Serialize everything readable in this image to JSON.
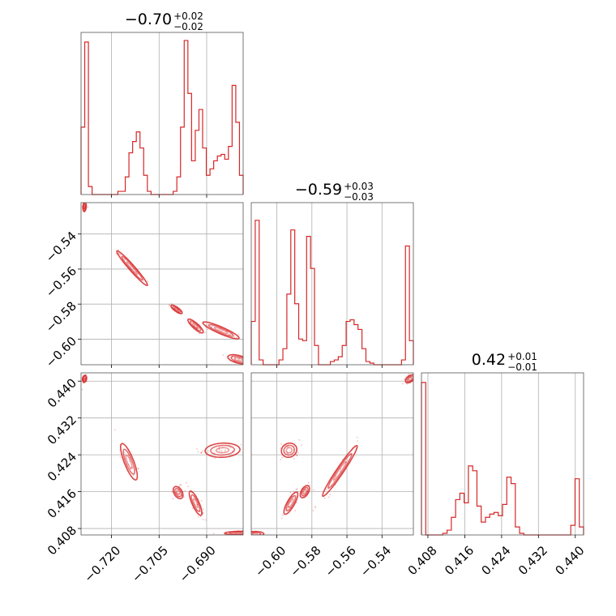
{
  "chart_data": {
    "type": "corner",
    "color": "#d62728",
    "grid": true,
    "parameters": [
      {
        "name": "p0",
        "title": {
          "median": "−0.70",
          "plus": "+0.02",
          "minus": "−0.02"
        },
        "range": [
          -0.7296,
          -0.6785
        ],
        "ticks": [
          -0.72,
          -0.705,
          -0.69
        ],
        "tick_labels": [
          "−0.720",
          "−0.705",
          "−0.690"
        ],
        "hist": [
          0.42,
          0.95,
          0.05,
          0,
          0,
          0,
          0,
          0,
          0,
          0,
          0.02,
          0.02,
          0.11,
          0.26,
          0.33,
          0.39,
          0.29,
          0.12,
          0.02,
          0,
          0,
          0,
          0,
          0,
          0,
          0.02,
          0.11,
          0.42,
          0.96,
          0.63,
          0.21,
          0.4,
          0.53,
          0.29,
          0.12,
          0.16,
          0.21,
          0.24,
          0.25,
          0.22,
          0.3,
          0.68,
          0.45,
          0.12
        ]
      },
      {
        "name": "p1",
        "title": {
          "median": "−0.59",
          "plus": "+0.03",
          "minus": "−0.03"
        },
        "range": [
          -0.6146,
          -0.5221
        ],
        "ticks": [
          -0.6,
          -0.58,
          -0.56,
          -0.54
        ],
        "tick_labels": [
          "−0.60",
          "−0.58",
          "−0.56",
          "−0.54"
        ],
        "hist": [
          0.27,
          0.9,
          0.03,
          0,
          0,
          0,
          0,
          0.03,
          0.1,
          0.44,
          0.84,
          0.38,
          0.16,
          0.15,
          0.8,
          0.6,
          0.12,
          0,
          0,
          0,
          0.02,
          0.03,
          0.05,
          0.12,
          0.27,
          0.28,
          0.25,
          0.22,
          0.1,
          0.02,
          0.01,
          0,
          0,
          0,
          0,
          0,
          0,
          0,
          0.03,
          0.74,
          0.15
        ]
      },
      {
        "name": "p2",
        "title": {
          "median": "0.42",
          "plus": "+0.01",
          "minus": "−0.01"
        },
        "range": [
          0.4066,
          0.4418
        ],
        "ticks": [
          0.408,
          0.416,
          0.424,
          0.432,
          0.44
        ],
        "tick_labels": [
          "0.408",
          "0.416",
          "0.424",
          "0.432",
          "0.440"
        ],
        "hist": [
          0.95,
          0,
          0,
          0,
          0,
          0.01,
          0.03,
          0.11,
          0.22,
          0.26,
          0.2,
          0.43,
          0.4,
          0.18,
          0.08,
          0.11,
          0.13,
          0.14,
          0.12,
          0.19,
          0.36,
          0.32,
          0.05,
          0.01,
          0,
          0,
          0,
          0,
          0,
          0,
          0,
          0,
          0,
          0,
          0,
          0.06,
          0.35,
          0.05
        ]
      }
    ],
    "pairs": [
      {
        "x": 0,
        "y": 1,
        "clusters": [
          {
            "cx": -0.7285,
            "cy": -0.5245,
            "sx": 0.00025,
            "sy": 0.0012,
            "rho": 0.2
          },
          {
            "cx": -0.7135,
            "cy": -0.5595,
            "sx": 0.0022,
            "sy": 0.0045,
            "rho": -0.97
          },
          {
            "cx": -0.6995,
            "cy": -0.583,
            "sx": 0.0008,
            "sy": 0.0011,
            "rho": -0.8
          },
          {
            "cx": -0.6935,
            "cy": -0.5925,
            "sx": 0.0011,
            "sy": 0.0018,
            "rho": -0.85
          },
          {
            "cx": -0.6855,
            "cy": -0.595,
            "sx": 0.0026,
            "sy": 0.0022,
            "rho": -0.9
          },
          {
            "cx": -0.68,
            "cy": -0.6115,
            "sx": 0.0015,
            "sy": 0.0012,
            "rho": -0.5
          }
        ]
      },
      {
        "x": 0,
        "y": 2,
        "clusters": [
          {
            "cx": -0.7285,
            "cy": 0.4405,
            "sx": 0.0003,
            "sy": 0.00035,
            "rho": 0.2
          },
          {
            "cx": -0.7145,
            "cy": 0.4225,
            "sx": 0.0012,
            "sy": 0.0018,
            "rho": -0.8
          },
          {
            "cx": -0.699,
            "cy": 0.4158,
            "sx": 0.0007,
            "sy": 0.0006,
            "rho": -0.4
          },
          {
            "cx": -0.6935,
            "cy": 0.4135,
            "sx": 0.0009,
            "sy": 0.0012,
            "rho": -0.8
          },
          {
            "cx": -0.685,
            "cy": 0.425,
            "sx": 0.0025,
            "sy": 0.0007,
            "rho": 0.1
          },
          {
            "cx": -0.6795,
            "cy": 0.407,
            "sx": 0.0022,
            "sy": 0.00018,
            "rho": 0.1
          }
        ]
      },
      {
        "x": 1,
        "y": 2,
        "clusters": [
          {
            "cx": -0.613,
            "cy": 0.4068,
            "sx": 0.0025,
            "sy": 0.00025,
            "rho": 0.1
          },
          {
            "cx": -0.593,
            "cy": 0.425,
            "sx": 0.002,
            "sy": 0.0007,
            "rho": 0.1
          },
          {
            "cx": -0.592,
            "cy": 0.4135,
            "sx": 0.0018,
            "sy": 0.0011,
            "rho": 0.8
          },
          {
            "cx": -0.584,
            "cy": 0.416,
            "sx": 0.0012,
            "sy": 0.0006,
            "rho": 0.5
          },
          {
            "cx": -0.564,
            "cy": 0.4205,
            "sx": 0.0045,
            "sy": 0.0025,
            "rho": 0.97
          },
          {
            "cx": -0.524,
            "cy": 0.4405,
            "sx": 0.0012,
            "sy": 0.0004,
            "rho": 0.5
          }
        ]
      }
    ]
  }
}
